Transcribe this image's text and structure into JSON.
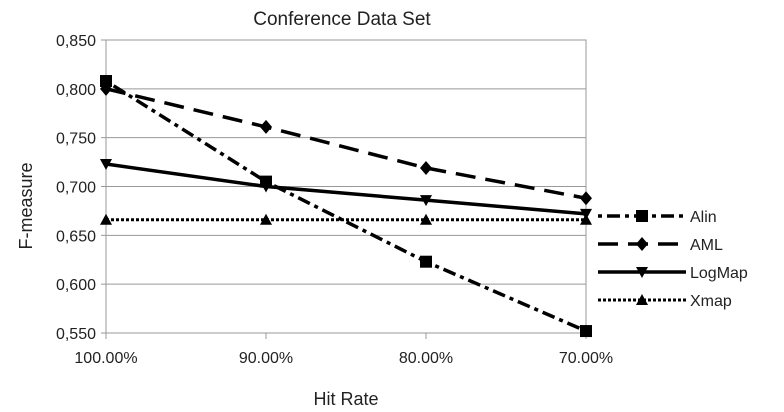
{
  "chart_data": {
    "type": "line",
    "title": "Conference Data Set",
    "xlabel": "Hit Rate",
    "ylabel": "F-measure",
    "categories": [
      "100.00%",
      "90.00%",
      "80.00%",
      "70.00%"
    ],
    "yticks": [
      "0,550",
      "0,600",
      "0,650",
      "0,700",
      "0,750",
      "0,800",
      "0,850"
    ],
    "ylim": [
      0.55,
      0.85
    ],
    "grid": "horizontal",
    "legend_position": "right",
    "series": [
      {
        "name": "Alin",
        "values": [
          0.808,
          0.705,
          0.623,
          0.552
        ],
        "marker": "square",
        "dash": "dot-dash"
      },
      {
        "name": "AML",
        "values": [
          0.8,
          0.761,
          0.719,
          0.688
        ],
        "marker": "diamond",
        "dash": "long-dash"
      },
      {
        "name": "LogMap",
        "values": [
          0.723,
          0.7,
          0.686,
          0.672
        ],
        "marker": "triangle-down",
        "dash": "solid"
      },
      {
        "name": "Xmap",
        "values": [
          0.666,
          0.666,
          0.666,
          0.666
        ],
        "marker": "triangle-up",
        "dash": "dotted"
      }
    ]
  }
}
